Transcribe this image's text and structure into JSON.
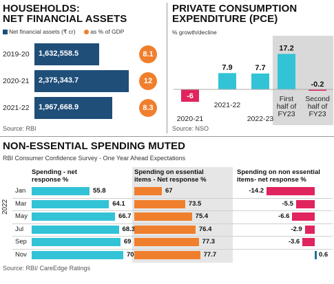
{
  "households": {
    "title_line1": "HOUSEHOLDS:",
    "title_line2": "NET FINANCIAL ASSETS",
    "legend_assets": "Net financial assets (₹ cr)",
    "legend_gdp": "as % of GDP",
    "source": "Source: RBI",
    "colors": {
      "bar": "#1f4e79",
      "circle": "#f07f2d"
    }
  },
  "pce": {
    "title_line1": "PRIVATE CONSUMPTION",
    "title_line2": "EXPENDITURE (PCE)",
    "subtitle": "% growth/decline",
    "source": "Source: NSO",
    "colors": {
      "positive": "#33c3d6",
      "negative": "#e0245e",
      "shade": "#d9d9d9"
    }
  },
  "spending": {
    "title": "NON-ESSENTIAL SPENDING MUTED",
    "subtitle": "RBI Consumer Confidence Survey - One Year Ahead Expectations",
    "year_label": "2022",
    "col1_head_line1": "Spending - net",
    "col1_head_line2": "response %",
    "col2_head_line1": "Spending on essential",
    "col2_head_line2": "items -  Net response %",
    "col3_head_line1": "Spending on non essential",
    "col3_head_line2": "items- net response %",
    "source": "Source: RBI/ CareEdge Ratings",
    "colors": {
      "col1": "#33c3d6",
      "col2": "#f07f2d",
      "col3_neg": "#e0245e",
      "col3_pos": "#1f6f99",
      "shade": "#e6e6e6"
    }
  },
  "chart_data": [
    {
      "type": "bar",
      "orientation": "horizontal",
      "title": "HOUSEHOLDS: NET FINANCIAL ASSETS",
      "categories": [
        "2019-20",
        "2020-21",
        "2021-22"
      ],
      "series": [
        {
          "name": "Net financial assets (₹ cr)",
          "values": [
            1632558.5,
            2375343.7,
            1967668.9
          ],
          "labels": [
            "1,632,558.5",
            "2,375,343.7",
            "1,967,668.9"
          ]
        },
        {
          "name": "as % of GDP",
          "values": [
            8.1,
            12,
            8.3
          ],
          "labels": [
            "8.1",
            "12",
            "8.3"
          ]
        }
      ]
    },
    {
      "type": "bar",
      "title": "PRIVATE CONSUMPTION EXPENDITURE (PCE)",
      "ylabel": "% growth/decline",
      "categories": [
        "2020-21",
        "2021-22",
        "2022-23",
        "First half of FY23",
        "Second half of FY23"
      ],
      "category_lines": [
        [
          "2020-21"
        ],
        [
          "2021-22"
        ],
        [
          "2022-23"
        ],
        [
          "First",
          "half of",
          "FY23"
        ],
        [
          "Second",
          "half of",
          "FY23"
        ]
      ],
      "values": [
        -6,
        7.9,
        7.7,
        17.2,
        -0.2
      ],
      "labels": [
        "-6",
        "7.9",
        "7.7",
        "17.2",
        "-0.2"
      ]
    },
    {
      "type": "bar",
      "orientation": "horizontal",
      "title": "NON-ESSENTIAL SPENDING MUTED",
      "categories": [
        "Jan",
        "Mar",
        "May",
        "Jul",
        "Sep",
        "Nov"
      ],
      "series": [
        {
          "name": "Spending - net response %",
          "values": [
            55.8,
            64.1,
            66.7,
            68.3,
            69,
            70.2
          ],
          "labels": [
            "55.8",
            "64.1",
            "66.7",
            "68.3",
            "69",
            "70.2"
          ]
        },
        {
          "name": "Spending on essential items - Net response %",
          "values": [
            67,
            73.5,
            75.4,
            76.4,
            77.3,
            77.7
          ],
          "labels": [
            "67",
            "73.5",
            "75.4",
            "76.4",
            "77.3",
            "77.7"
          ]
        },
        {
          "name": "Spending on non essential items- net response %",
          "values": [
            -14.2,
            -5.5,
            -6.6,
            -2.9,
            -3.6,
            0.6
          ],
          "labels": [
            "-14.2",
            "-5.5",
            "-6.6",
            "-2.9",
            "-3.6",
            "0.6"
          ]
        }
      ]
    }
  ]
}
